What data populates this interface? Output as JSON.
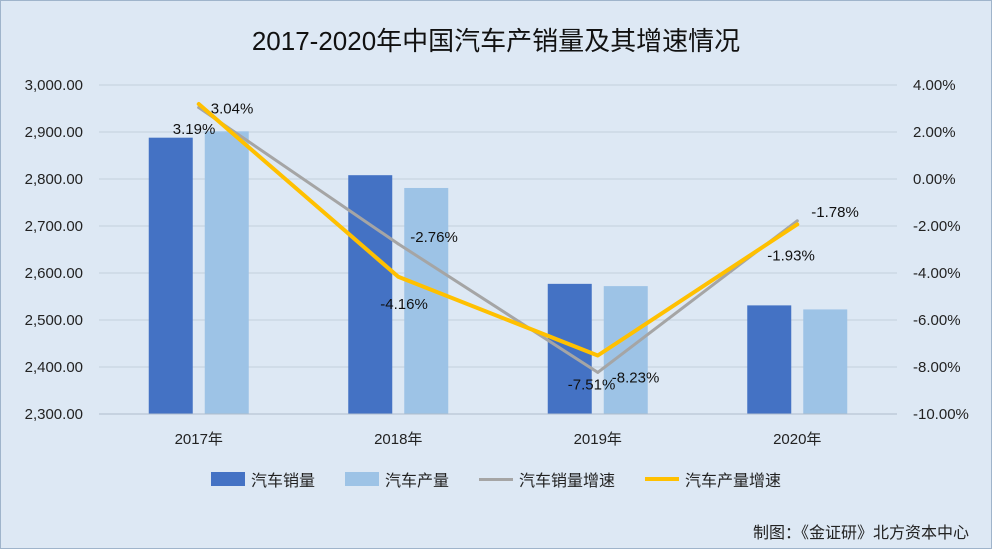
{
  "chart_data": {
    "type": "bar",
    "title": "2017-2020年中国汽车产销量及其增速情况",
    "categories": [
      "2017年",
      "2018年",
      "2019年",
      "2020年"
    ],
    "series": [
      {
        "name": "汽车销量",
        "kind": "bar",
        "axis": "left",
        "color": "#4472c4",
        "values": [
          2887.9,
          2808.1,
          2576.9,
          2531.1
        ]
      },
      {
        "name": "汽车产量",
        "kind": "bar",
        "axis": "left",
        "color": "#9dc3e6",
        "values": [
          2901.5,
          2780.9,
          2572.1,
          2522.5
        ]
      },
      {
        "name": "汽车销量增速",
        "kind": "line",
        "axis": "right",
        "color": "#a5a5a5",
        "values": [
          3.04,
          -2.76,
          -8.23,
          -1.78
        ],
        "labels": [
          "3.04%",
          "-2.76%",
          "-8.23%",
          "-1.78%"
        ]
      },
      {
        "name": "汽车产量增速",
        "kind": "line",
        "axis": "right",
        "color": "#ffc000",
        "values": [
          3.19,
          -4.16,
          -7.51,
          -1.93
        ],
        "labels": [
          "3.19%",
          "-4.16%",
          "-7.51%",
          "-1.93%"
        ]
      }
    ],
    "y_left": {
      "min": 2300,
      "max": 3000,
      "step": 100,
      "tick_labels": [
        "2,300.00",
        "2,400.00",
        "2,500.00",
        "2,600.00",
        "2,700.00",
        "2,800.00",
        "2,900.00",
        "3,000.00"
      ]
    },
    "y_right": {
      "min": -10,
      "max": 4,
      "step": 2,
      "tick_labels": [
        "-10.00%",
        "-8.00%",
        "-6.00%",
        "-4.00%",
        "-2.00%",
        "0.00%",
        "2.00%",
        "4.00%"
      ]
    },
    "grid": true,
    "legend_position": "bottom"
  },
  "source_note": "制图：《金证研》北方资本中心"
}
